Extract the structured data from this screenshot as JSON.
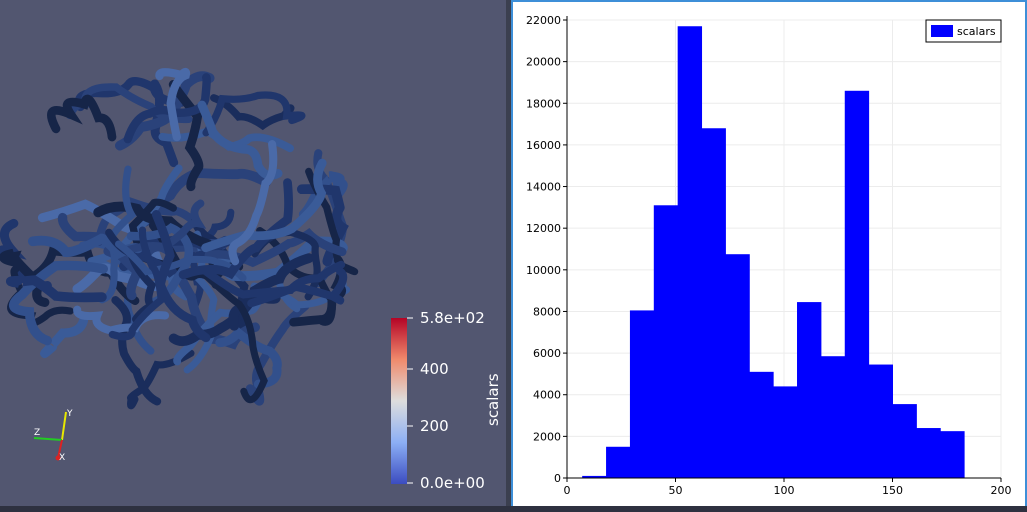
{
  "render_view": {
    "scalar_bar": {
      "title": "scalars",
      "tick_labels": [
        "5.8e+02",
        "400",
        "200",
        "0.0e+00"
      ],
      "colors": {
        "top": "#b40426",
        "mid_high": "#f08a6c",
        "mid": "#dddddd",
        "mid_low": "#8caff5",
        "bottom": "#3b4cc0"
      }
    },
    "orientation_axes": {
      "x_label": "X",
      "y_label": "Y",
      "z_label": "Z"
    },
    "tube_color": "#1f3366",
    "background_color": "#525670"
  },
  "chart_data": {
    "type": "bar",
    "title": "",
    "xlabel": "",
    "ylabel": "",
    "xlim": [
      0,
      200
    ],
    "ylim": [
      0,
      22000
    ],
    "xticks": [
      0,
      50,
      100,
      150,
      200
    ],
    "yticks": [
      0,
      2000,
      4000,
      6000,
      8000,
      10000,
      12000,
      14000,
      16000,
      18000,
      20000,
      22000
    ],
    "grid": true,
    "legend_position": "top-right",
    "series": [
      {
        "name": "scalars",
        "color": "#0000ff",
        "bins": [
          {
            "x0": 7,
            "x1": 18,
            "value": 100
          },
          {
            "x0": 18,
            "x1": 29,
            "value": 1500
          },
          {
            "x0": 29,
            "x1": 40,
            "value": 8050
          },
          {
            "x0": 40,
            "x1": 51,
            "value": 13100
          },
          {
            "x0": 51,
            "x1": 62,
            "value": 21700
          },
          {
            "x0": 62,
            "x1": 73,
            "value": 16800
          },
          {
            "x0": 73,
            "x1": 84,
            "value": 10750
          },
          {
            "x0": 84,
            "x1": 95,
            "value": 5100
          },
          {
            "x0": 95,
            "x1": 106,
            "value": 4400
          },
          {
            "x0": 106,
            "x1": 117,
            "value": 8450
          },
          {
            "x0": 117,
            "x1": 128,
            "value": 5850
          },
          {
            "x0": 128,
            "x1": 139,
            "value": 18600
          },
          {
            "x0": 139,
            "x1": 150,
            "value": 5450
          },
          {
            "x0": 150,
            "x1": 161,
            "value": 3550
          },
          {
            "x0": 161,
            "x1": 172,
            "value": 2400
          },
          {
            "x0": 172,
            "x1": 183,
            "value": 2250
          }
        ]
      }
    ]
  }
}
